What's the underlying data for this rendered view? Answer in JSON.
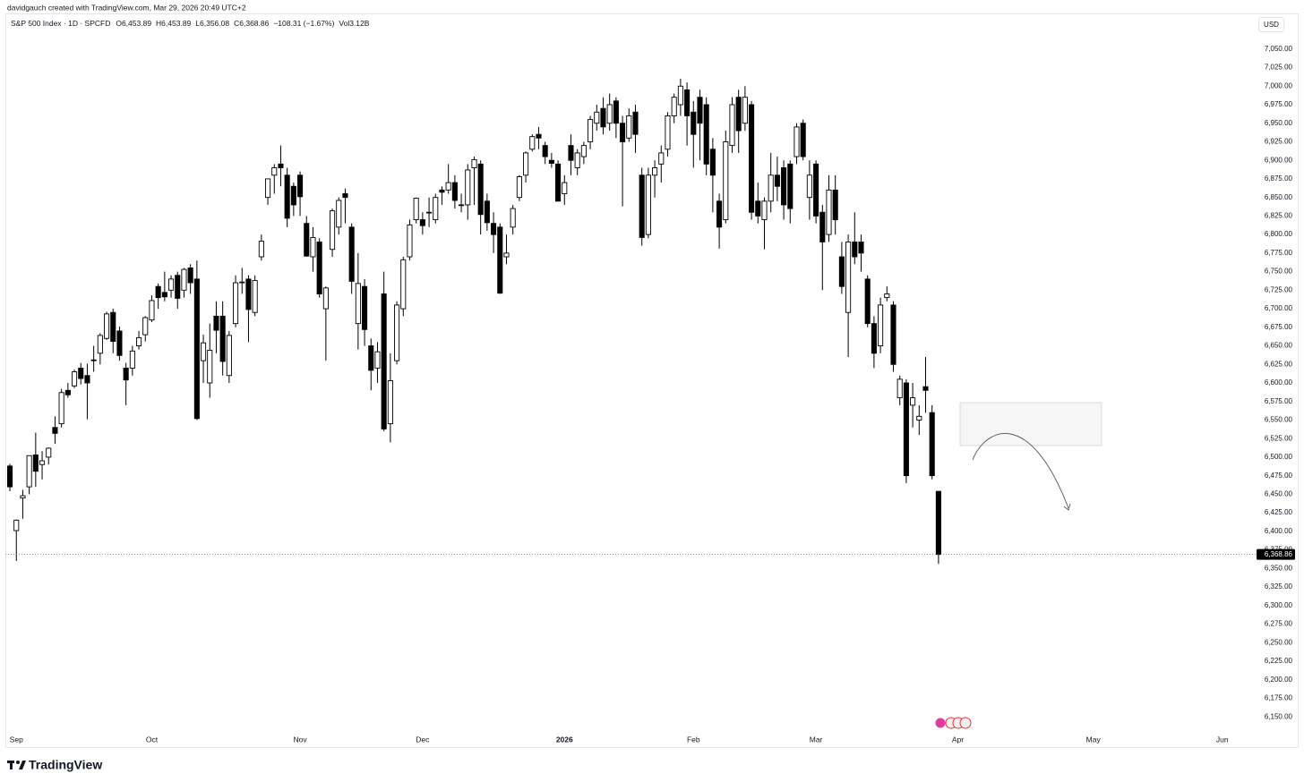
{
  "header": {
    "attribution": "davidgauch created with TradingView.com, Mar 29, 2026 20:49 UTC+2",
    "symbol": "S&P 500 Index · 1D · SPCFD",
    "ohlc": [
      "O6,453.89",
      "H6,453.89",
      "L6,356.08",
      "C6,368.86"
    ],
    "change": "−108.31 (−1.67%)",
    "volume": "Vol3.12B"
  },
  "currency": "USD",
  "brand": "TradingView",
  "chart_data": {
    "type": "candlestick",
    "up_color": "#ffffff",
    "down_color": "#000000",
    "border_color": "#000000",
    "open": [
      6488,
      6401,
      6445,
      6460,
      6503,
      6490,
      6500,
      6540,
      6545,
      6590,
      6596,
      6620,
      6610,
      6630,
      6640,
      6660,
      6695,
      6670,
      6620,
      6620,
      6650,
      6665,
      6685,
      6730,
      6722,
      6725,
      6745,
      6725,
      6755,
      6740,
      6630,
      6600,
      6690,
      6690,
      6610,
      6680,
      6736,
      6740,
      6695,
      6770,
      6850,
      6880,
      6895,
      6880,
      6865,
      6880,
      6815,
      6770,
      6790,
      6700,
      6780,
      6810,
      6855,
      6810,
      6680,
      6730,
      6650,
      6620,
      6720,
      6545,
      6630,
      6700,
      6770,
      6820,
      6820,
      6830,
      6820,
      6860,
      6860,
      6870,
      6840,
      6840,
      6890,
      6895,
      6845,
      6815,
      6810,
      6770,
      6810,
      6850,
      6880,
      6915,
      6935,
      6920,
      6900,
      6895,
      6855,
      6920,
      6890,
      6905,
      6925,
      6950,
      6970,
      6950,
      6980,
      6950,
      6930,
      6965,
      6880,
      6800,
      6880,
      6895,
      6915,
      6960,
      6975,
      6995,
      6965,
      6985,
      6975,
      6915,
      6845,
      6820,
      6920,
      6985,
      6950,
      6975,
      6845,
      6820,
      6845,
      6880,
      6890,
      6895,
      6905,
      6950,
      6850,
      6895,
      6830,
      6800,
      6860,
      6770,
      6695,
      6790,
      6790,
      6740,
      6680,
      6650,
      6715,
      6705,
      6580,
      6600,
      6570,
      6550,
      6595,
      6560,
      6453.89
    ],
    "high": [
      6491,
      6416,
      6456,
      6502,
      6533,
      6508,
      6513,
      6555,
      6592,
      6600,
      6618,
      6627,
      6626,
      6650,
      6667,
      6696,
      6700,
      6676,
      6627,
      6650,
      6670,
      6690,
      6718,
      6734,
      6750,
      6745,
      6750,
      6755,
      6760,
      6765,
      6665,
      6680,
      6710,
      6710,
      6670,
      6745,
      6755,
      6745,
      6745,
      6800,
      6875,
      6895,
      6920,
      6890,
      6870,
      6885,
      6825,
      6810,
      6795,
      6730,
      6835,
      6850,
      6862,
      6815,
      6775,
      6740,
      6660,
      6655,
      6750,
      6640,
      6710,
      6770,
      6820,
      6850,
      6830,
      6850,
      6855,
      6865,
      6895,
      6880,
      6855,
      6895,
      6905,
      6900,
      6855,
      6830,
      6815,
      6800,
      6840,
      6880,
      6912,
      6935,
      6945,
      6925,
      6910,
      6900,
      6880,
      6935,
      6915,
      6925,
      6960,
      6975,
      6985,
      6990,
      6985,
      6960,
      6970,
      6975,
      6890,
      6890,
      6900,
      6920,
      6965,
      6990,
      7010,
      7005,
      6980,
      6995,
      6985,
      6930,
      6855,
      6940,
      6985,
      6995,
      7000,
      6980,
      6870,
      6850,
      6910,
      6905,
      6900,
      6900,
      6950,
      6955,
      6900,
      6900,
      6840,
      6880,
      6880,
      6790,
      6800,
      6830,
      6800,
      6745,
      6690,
      6715,
      6730,
      6710,
      6610,
      6605,
      6600,
      6570,
      6635,
      6570,
      6453.89
    ],
    "low": [
      6454,
      6360,
      6417,
      6450,
      6460,
      6470,
      6490,
      6518,
      6540,
      6580,
      6593,
      6598,
      6551,
      6615,
      6625,
      6658,
      6640,
      6630,
      6570,
      6610,
      6645,
      6656,
      6682,
      6700,
      6710,
      6715,
      6700,
      6715,
      6720,
      6550,
      6600,
      6580,
      6640,
      6610,
      6600,
      6675,
      6720,
      6655,
      6690,
      6765,
      6840,
      6855,
      6865,
      6810,
      6825,
      6825,
      6770,
      6750,
      6715,
      6630,
      6770,
      6800,
      6815,
      6720,
      6645,
      6650,
      6590,
      6600,
      6535,
      6520,
      6625,
      6690,
      6765,
      6815,
      6800,
      6810,
      6815,
      6840,
      6855,
      6835,
      6830,
      6820,
      6840,
      6800,
      6805,
      6775,
      6720,
      6760,
      6800,
      6845,
      6870,
      6912,
      6915,
      6895,
      6890,
      6845,
      6840,
      6880,
      6880,
      6895,
      6915,
      6940,
      6935,
      6940,
      6930,
      6838,
      6925,
      6910,
      6785,
      6795,
      6850,
      6870,
      6905,
      6950,
      6960,
      6920,
      6890,
      6900,
      6880,
      6830,
      6781,
      6815,
      6910,
      6910,
      6940,
      6820,
      6815,
      6780,
      6830,
      6845,
      6820,
      6815,
      6895,
      6900,
      6820,
      6815,
      6725,
      6790,
      6800,
      6720,
      6635,
      6760,
      6750,
      6675,
      6620,
      6640,
      6710,
      6615,
      6570,
      6465,
      6540,
      6530,
      6560,
      6470,
      6356.08
    ],
    "close": [
      6460,
      6415,
      6448,
      6502,
      6481,
      6495,
      6512,
      6532,
      6587,
      6584,
      6615,
      6606,
      6600,
      6631,
      6664,
      6693,
      6656,
      6637,
      6604,
      6643,
      6661,
      6688,
      6711,
      6715,
      6716,
      6740,
      6714,
      6753,
      6735,
      6552,
      6654,
      6644,
      6671,
      6629,
      6664,
      6735,
      6735,
      6699,
      6738,
      6791,
      6875,
      6890,
      6890,
      6822,
      6840,
      6851,
      6771,
      6796,
      6720,
      6728,
      6832,
      6846,
      6850,
      6737,
      6734,
      6672,
      6617,
      6642,
      6538,
      6603,
      6705,
      6766,
      6813,
      6849,
      6812,
      6829,
      6850,
      6857,
      6870,
      6846,
      6840,
      6887,
      6901,
      6827,
      6816,
      6800,
      6721,
      6775,
      6835,
      6878,
      6910,
      6932,
      6930,
      6905,
      6896,
      6845,
      6870,
      6900,
      6910,
      6920,
      6955,
      6965,
      6945,
      6975,
      6950,
      6925,
      6960,
      6935,
      6796,
      6880,
      6890,
      6910,
      6960,
      6985,
      7000,
      6960,
      6935,
      6950,
      6895,
      6880,
      6810,
      6925,
      6975,
      6940,
      6985,
      6830,
      6825,
      6845,
      6880,
      6865,
      6840,
      6835,
      6945,
      6905,
      6880,
      6825,
      6790,
      6860,
      6820,
      6730,
      6790,
      6770,
      6775,
      6680,
      6640,
      6705,
      6720,
      6625,
      6605,
      6475,
      6580,
      6555,
      6590,
      6475,
      6368.86
    ],
    "xlim": [
      -0.7,
      192.9
    ],
    "xticks": [
      {
        "value": 1,
        "label": "Sep"
      },
      {
        "value": 22,
        "label": "Oct"
      },
      {
        "value": 45,
        "label": "Nov"
      },
      {
        "value": 64,
        "label": "Dec"
      },
      {
        "value": 86,
        "label": "2026"
      },
      {
        "value": 106,
        "label": "Feb"
      },
      {
        "value": 125,
        "label": "Mar"
      },
      {
        "value": 147,
        "label": "Apr"
      },
      {
        "value": 168,
        "label": "May"
      },
      {
        "value": 188,
        "label": "Jun"
      }
    ],
    "ylim": [
      6108,
      7098
    ],
    "yticks": [
      {
        "value": 6150,
        "label": "6,150.00"
      },
      {
        "value": 6175,
        "label": "6,175.00"
      },
      {
        "value": 6200,
        "label": "6,200.00"
      },
      {
        "value": 6225,
        "label": "6,225.00"
      },
      {
        "value": 6250,
        "label": "6,250.00"
      },
      {
        "value": 6275,
        "label": "6,275.00"
      },
      {
        "value": 6300,
        "label": "6,300.00"
      },
      {
        "value": 6325,
        "label": "6,325.00"
      },
      {
        "value": 6350,
        "label": "6,350.00"
      },
      {
        "value": 6375,
        "label": "6,375.00"
      },
      {
        "value": 6400,
        "label": "6,400.00"
      },
      {
        "value": 6425,
        "label": "6,425.00"
      },
      {
        "value": 6450,
        "label": "6,450.00"
      },
      {
        "value": 6475,
        "label": "6,475.00"
      },
      {
        "value": 6500,
        "label": "6,500.00"
      },
      {
        "value": 6525,
        "label": "6,525.00"
      },
      {
        "value": 6550,
        "label": "6,550.00"
      },
      {
        "value": 6575,
        "label": "6,575.00"
      },
      {
        "value": 6600,
        "label": "6,600.00"
      },
      {
        "value": 6625,
        "label": "6,625.00"
      },
      {
        "value": 6650,
        "label": "6,650.00"
      },
      {
        "value": 6675,
        "label": "6,675.00"
      },
      {
        "value": 6700,
        "label": "6,700.00"
      },
      {
        "value": 6725,
        "label": "6,725.00"
      },
      {
        "value": 6750,
        "label": "6,750.00"
      },
      {
        "value": 6775,
        "label": "6,775.00"
      },
      {
        "value": 6800,
        "label": "6,800.00"
      },
      {
        "value": 6825,
        "label": "6,825.00"
      },
      {
        "value": 6850,
        "label": "6,850.00"
      },
      {
        "value": 6875,
        "label": "6,875.00"
      },
      {
        "value": 6900,
        "label": "6,900.00"
      },
      {
        "value": 6925,
        "label": "6,925.00"
      },
      {
        "value": 6950,
        "label": "6,950.00"
      },
      {
        "value": 6975,
        "label": "6,975.00"
      },
      {
        "value": 7000,
        "label": "7,000.00"
      },
      {
        "value": 7025,
        "label": "7,025.00"
      },
      {
        "value": 7050,
        "label": "7,050.00"
      }
    ],
    "last_price": {
      "value": 6368.86,
      "label": "6,368.86"
    },
    "grid": false
  }
}
